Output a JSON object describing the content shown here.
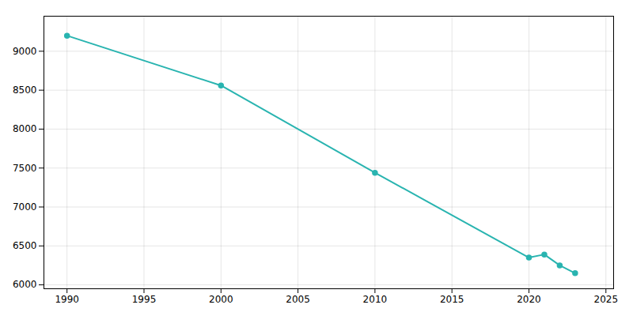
{
  "chart_data": {
    "type": "line",
    "x": [
      1990,
      2000,
      2010,
      2020,
      2021,
      2022,
      2023
    ],
    "values": [
      9200,
      8560,
      7440,
      6350,
      6390,
      6250,
      6150
    ],
    "color": "#29b4b0",
    "marker": "circle",
    "xlim": [
      1988.5,
      2025.5
    ],
    "ylim": [
      5950,
      9450
    ],
    "xticks": [
      1990,
      1995,
      2000,
      2005,
      2010,
      2015,
      2020,
      2025
    ],
    "yticks": [
      6000,
      6500,
      7000,
      7500,
      8000,
      8500,
      9000
    ],
    "grid": true
  }
}
